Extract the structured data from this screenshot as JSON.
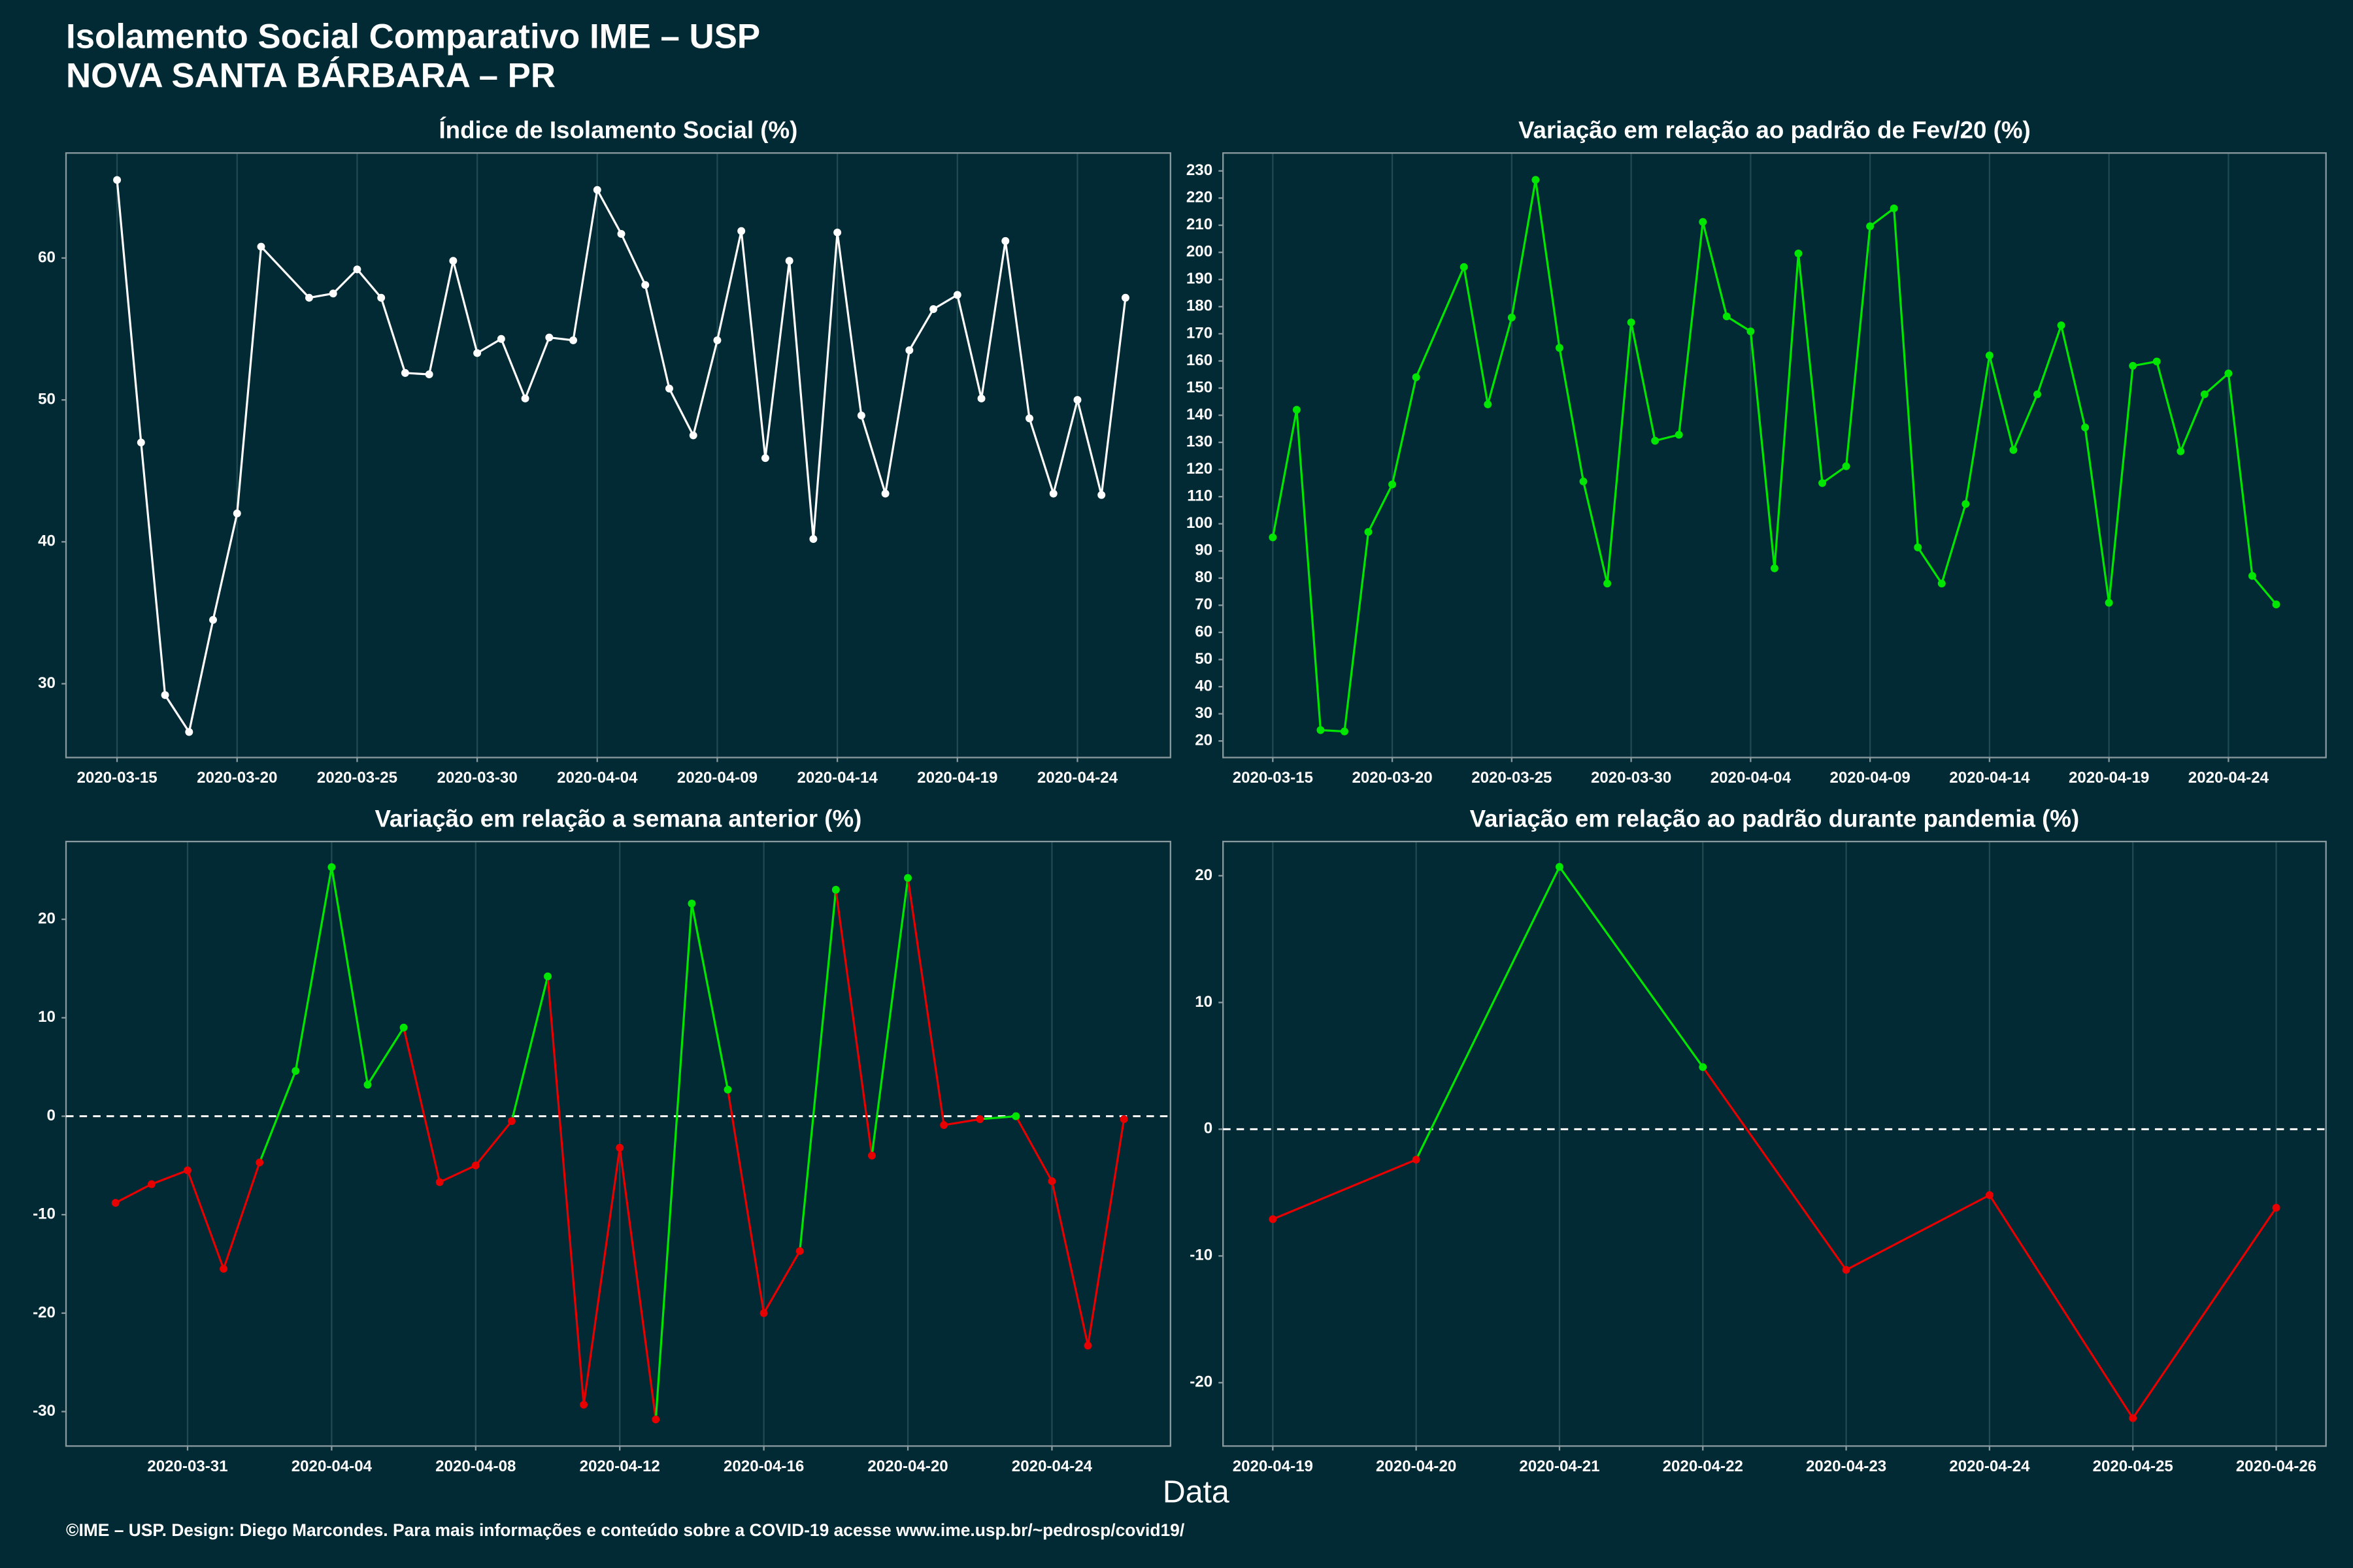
{
  "title": "Isolamento Social Comparativo IME – USP",
  "subtitle": "NOVA SANTA BÁRBARA – PR",
  "x_label": "Data",
  "caption": "©IME – USP. Design: Diego Marcondes. Para mais informações e conteúdo sobre a COVID-19 acesse www.ime.usp.br/~pedrosp/covid19/",
  "chart_data": [
    {
      "type": "line",
      "title": "Índice de Isolamento Social (%)",
      "color": "#ffffff",
      "grid": "x",
      "x": [
        "2020-03-15",
        "2020-03-16",
        "2020-03-17",
        "2020-03-18",
        "2020-03-19",
        "2020-03-20",
        "2020-03-21",
        "2020-03-23",
        "2020-03-24",
        "2020-03-25",
        "2020-03-26",
        "2020-03-27",
        "2020-03-28",
        "2020-03-29",
        "2020-03-30",
        "2020-03-31",
        "2020-04-01",
        "2020-04-02",
        "2020-04-03",
        "2020-04-04",
        "2020-04-05",
        "2020-04-06",
        "2020-04-07",
        "2020-04-08",
        "2020-04-09",
        "2020-04-10",
        "2020-04-11",
        "2020-04-12",
        "2020-04-13",
        "2020-04-14",
        "2020-04-15",
        "2020-04-16",
        "2020-04-17",
        "2020-04-18",
        "2020-04-19",
        "2020-04-20",
        "2020-04-21",
        "2020-04-22",
        "2020-04-23",
        "2020-04-24",
        "2020-04-25",
        "2020-04-26"
      ],
      "values": [
        65.5,
        47,
        29.2,
        26.6,
        34.5,
        42,
        60.8,
        57.2,
        57.5,
        59.2,
        57.2,
        51.9,
        51.8,
        59.8,
        53.3,
        54.3,
        50.1,
        54.4,
        54.2,
        64.8,
        61.7,
        58.1,
        50.8,
        47.5,
        54.2,
        61.9,
        45.9,
        59.8,
        40.2,
        61.8,
        48.9,
        43.4,
        53.5,
        56.4,
        57.4,
        50.1,
        61.2,
        48.7,
        43.4,
        50.0,
        43.3,
        57.2
      ],
      "xlim": [
        "2020-03-12T21:00",
        "2020-04-27T21:00"
      ],
      "xticks": [
        "2020-03-15",
        "2020-03-20",
        "2020-03-25",
        "2020-03-30",
        "2020-04-04",
        "2020-04-09",
        "2020-04-14",
        "2020-04-19",
        "2020-04-24"
      ],
      "ylim": [
        24.8,
        67.4
      ],
      "yticks": [
        30,
        40,
        50,
        60
      ]
    },
    {
      "type": "line",
      "title": "Variação em relação ao padrão de Fev/20 (%)",
      "color": "#00e600",
      "grid": "x",
      "x": [
        "2020-03-15",
        "2020-03-16",
        "2020-03-17",
        "2020-03-18",
        "2020-03-19",
        "2020-03-20",
        "2020-03-21",
        "2020-03-23",
        "2020-03-24",
        "2020-03-25",
        "2020-03-26",
        "2020-03-27",
        "2020-03-28",
        "2020-03-29",
        "2020-03-30",
        "2020-03-31",
        "2020-04-01",
        "2020-04-02",
        "2020-04-03",
        "2020-04-04",
        "2020-04-05",
        "2020-04-06",
        "2020-04-07",
        "2020-04-08",
        "2020-04-09",
        "2020-04-10",
        "2020-04-11",
        "2020-04-12",
        "2020-04-13",
        "2020-04-14",
        "2020-04-15",
        "2020-04-16",
        "2020-04-17",
        "2020-04-18",
        "2020-04-19",
        "2020-04-20",
        "2020-04-21",
        "2020-04-22",
        "2020-04-23",
        "2020-04-24",
        "2020-04-25",
        "2020-04-26"
      ],
      "values": [
        95,
        142,
        24,
        23.5,
        97,
        114.5,
        154,
        194.6,
        144,
        176,
        226.7,
        164.8,
        115.6,
        78,
        174.2,
        130.6,
        132.8,
        211.2,
        176.4,
        170.9,
        83.6,
        199.6,
        115,
        121.2,
        209.6,
        216.2,
        91.3,
        78,
        107.3,
        162,
        127.2,
        147.7,
        173.1,
        135.5,
        70.9,
        158.2,
        159.8,
        126.7,
        147.7,
        155.4,
        80.8,
        70.3
      ],
      "xlim": [
        "2020-03-12T22:00",
        "2020-04-28T02:00"
      ],
      "xticks": [
        "2020-03-15",
        "2020-03-20",
        "2020-03-25",
        "2020-03-30",
        "2020-04-04",
        "2020-04-09",
        "2020-04-14",
        "2020-04-19",
        "2020-04-24"
      ],
      "ylim": [
        13.9,
        236.6
      ],
      "yticks": [
        20,
        30,
        40,
        50,
        60,
        70,
        80,
        90,
        100,
        110,
        120,
        130,
        140,
        150,
        160,
        170,
        180,
        190,
        200,
        210,
        220,
        230
      ]
    },
    {
      "type": "line",
      "title": "Variação em relação a semana anterior (%)",
      "color": "#00e600",
      "negative_color": "#e60000",
      "grid": "x",
      "hline": 0,
      "x": [
        "2020-03-29",
        "2020-03-30",
        "2020-03-31",
        "2020-04-01",
        "2020-04-02",
        "2020-04-03",
        "2020-04-04",
        "2020-04-05",
        "2020-04-06",
        "2020-04-07",
        "2020-04-08",
        "2020-04-09",
        "2020-04-10",
        "2020-04-11",
        "2020-04-12",
        "2020-04-13",
        "2020-04-14",
        "2020-04-15",
        "2020-04-16",
        "2020-04-17",
        "2020-04-18",
        "2020-04-19",
        "2020-04-20",
        "2020-04-21",
        "2020-04-22",
        "2020-04-23",
        "2020-04-24",
        "2020-04-25",
        "2020-04-26"
      ],
      "values": [
        -8.8,
        -6.9,
        -5.5,
        -15.5,
        -4.7,
        4.6,
        25.3,
        3.2,
        9.0,
        -6.7,
        -5.0,
        -0.5,
        14.2,
        -29.3,
        -3.2,
        -30.8,
        21.6,
        2.7,
        -20.0,
        -13.7,
        23.0,
        -4.0,
        24.2,
        -0.9,
        -0.3,
        0.0,
        -6.6,
        -23.3,
        -0.3
      ],
      "xlim": [
        "2020-03-27T15:00",
        "2020-04-27T07:00"
      ],
      "xticks": [
        "2020-03-31",
        "2020-04-04",
        "2020-04-08",
        "2020-04-12",
        "2020-04-16",
        "2020-04-20",
        "2020-04-24"
      ],
      "ylim": [
        -33.5,
        27.9
      ],
      "yticks": [
        -30,
        -20,
        -10,
        0,
        10,
        20
      ]
    },
    {
      "type": "line",
      "title": "Variação em relação ao padrão durante pandemia (%)",
      "color": "#00e600",
      "negative_color": "#e60000",
      "grid": "x",
      "hline": 0,
      "x": [
        "2020-04-19",
        "2020-04-20",
        "2020-04-21",
        "2020-04-22",
        "2020-04-23",
        "2020-04-24",
        "2020-04-25",
        "2020-04-26"
      ],
      "values": [
        -7.1,
        -2.4,
        20.7,
        4.9,
        -11.1,
        -5.2,
        -22.8,
        -6.2
      ],
      "xlim": [
        "2020-04-18T15:40",
        "2020-04-26T08:20"
      ],
      "xticks": [
        "2020-04-19",
        "2020-04-20",
        "2020-04-21",
        "2020-04-22",
        "2020-04-23",
        "2020-04-24",
        "2020-04-25",
        "2020-04-26"
      ],
      "ylim": [
        -25.0,
        22.7
      ],
      "yticks": [
        -20,
        -10,
        0,
        10,
        20
      ]
    }
  ]
}
